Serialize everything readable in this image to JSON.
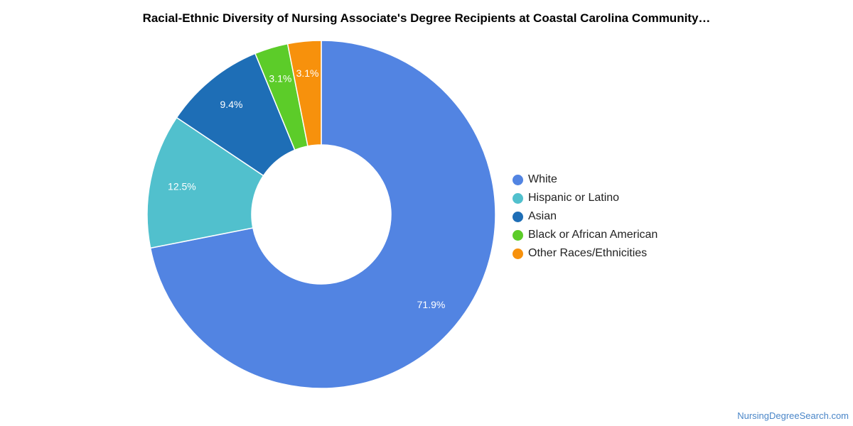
{
  "chart_data": {
    "type": "pie",
    "title": "Racial-Ethnic Diversity of Nursing Associate's Degree Recipients at Coastal Carolina Community…",
    "donut": true,
    "start_angle_deg": 0,
    "direction": "clockwise",
    "legend_position": "right",
    "categories": [
      "White",
      "Hispanic or Latino",
      "Asian",
      "Black or African American",
      "Other Races/Ethnicities"
    ],
    "values": [
      71.9,
      12.5,
      9.4,
      3.1,
      3.1
    ],
    "labels": [
      "71.9%",
      "12.5%",
      "9.4%",
      "3.1%",
      "3.1%"
    ],
    "colors": [
      "#5284e2",
      "#51c0cd",
      "#1e6eb6",
      "#5ccc29",
      "#f7910c"
    ]
  },
  "source": "NursingDegreeSearch.com"
}
